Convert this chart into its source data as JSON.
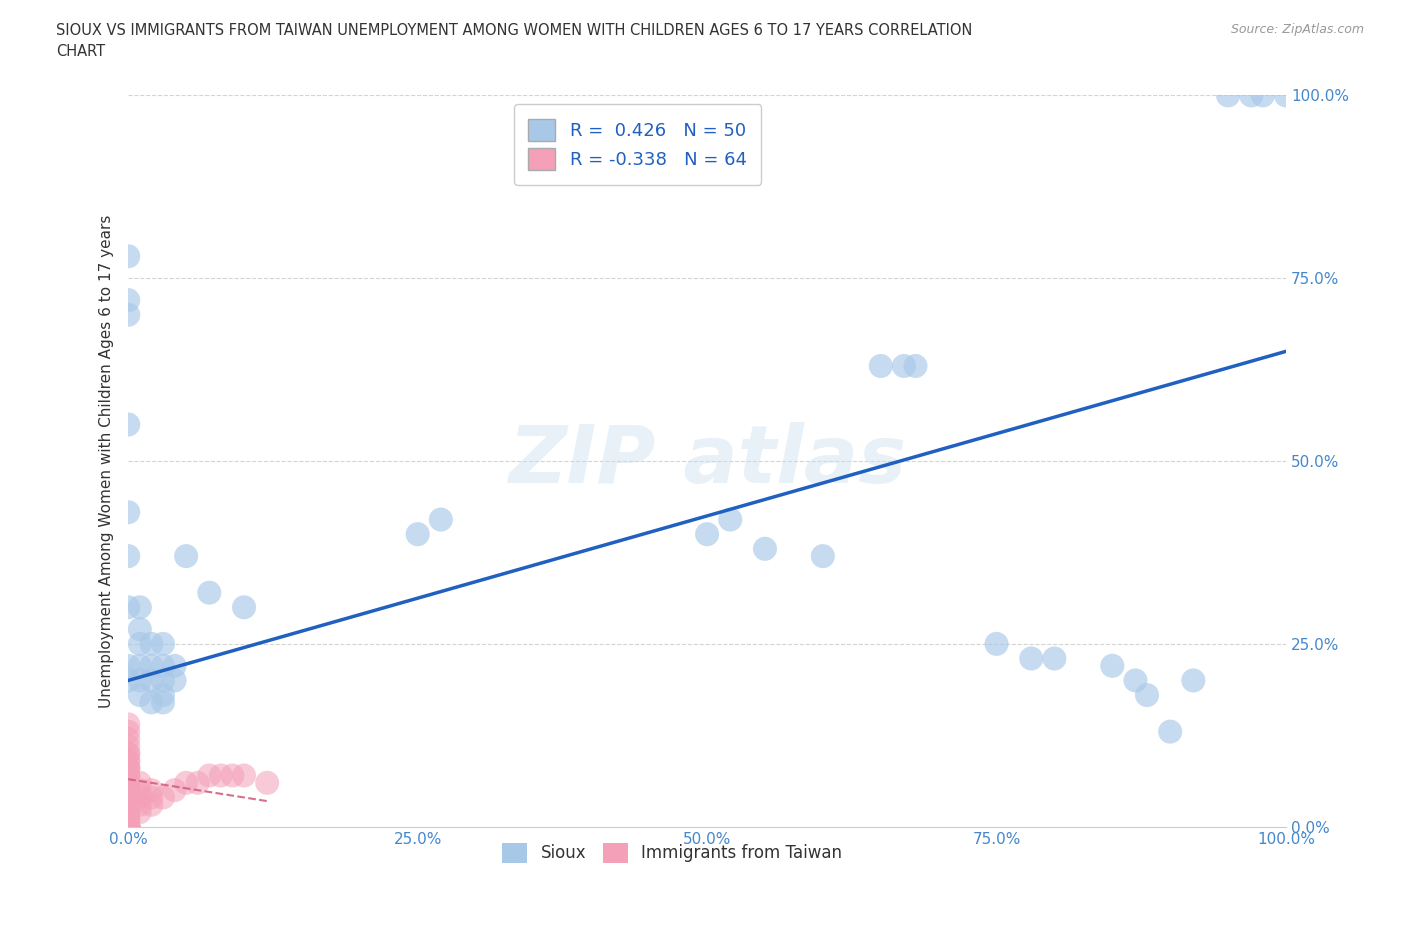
{
  "title": "SIOUX VS IMMIGRANTS FROM TAIWAN UNEMPLOYMENT AMONG WOMEN WITH CHILDREN AGES 6 TO 17 YEARS CORRELATION\nCHART",
  "source": "Source: ZipAtlas.com",
  "ylabel": "Unemployment Among Women with Children Ages 6 to 17 years",
  "legend_bottom": [
    "Sioux",
    "Immigrants from Taiwan"
  ],
  "sioux_R": 0.426,
  "sioux_N": 50,
  "taiwan_R": -0.338,
  "taiwan_N": 64,
  "sioux_color": "#a8c8e8",
  "taiwan_color": "#f4a0b8",
  "sioux_line_color": "#2060c0",
  "taiwan_line_color": "#d06080",
  "background_color": "#ffffff",
  "grid_color": "#c8c8c8",
  "sioux_x": [
    0.0,
    0.0,
    0.0,
    0.0,
    0.0,
    0.0,
    0.0,
    0.0,
    0.0,
    0.01,
    0.01,
    0.01,
    0.01,
    0.01,
    0.01,
    0.02,
    0.02,
    0.02,
    0.02,
    0.03,
    0.03,
    0.03,
    0.03,
    0.03,
    0.04,
    0.04,
    0.05,
    0.07,
    0.1,
    0.25,
    0.27,
    0.5,
    0.52,
    0.55,
    0.6,
    0.65,
    0.67,
    0.68,
    0.75,
    0.78,
    0.8,
    0.85,
    0.87,
    0.88,
    0.9,
    0.92,
    0.95,
    0.97,
    0.98,
    1.0
  ],
  "sioux_y": [
    0.78,
    0.72,
    0.7,
    0.55,
    0.43,
    0.37,
    0.3,
    0.22,
    0.2,
    0.3,
    0.27,
    0.25,
    0.22,
    0.2,
    0.18,
    0.25,
    0.22,
    0.2,
    0.17,
    0.25,
    0.22,
    0.2,
    0.18,
    0.17,
    0.22,
    0.2,
    0.37,
    0.32,
    0.3,
    0.4,
    0.42,
    0.4,
    0.42,
    0.38,
    0.37,
    0.63,
    0.63,
    0.63,
    0.25,
    0.23,
    0.23,
    0.22,
    0.2,
    0.18,
    0.13,
    0.2,
    1.0,
    1.0,
    1.0,
    1.0
  ],
  "taiwan_x": [
    0.0,
    0.0,
    0.0,
    0.0,
    0.0,
    0.0,
    0.0,
    0.0,
    0.0,
    0.0,
    0.0,
    0.0,
    0.0,
    0.0,
    0.0,
    0.0,
    0.0,
    0.0,
    0.0,
    0.0,
    0.0,
    0.0,
    0.0,
    0.0,
    0.0,
    0.0,
    0.0,
    0.0,
    0.0,
    0.0,
    0.0,
    0.0,
    0.0,
    0.0,
    0.0,
    0.0,
    0.0,
    0.0,
    0.0,
    0.0,
    0.0,
    0.0,
    0.0,
    0.0,
    0.0,
    0.0,
    0.0,
    0.01,
    0.01,
    0.01,
    0.01,
    0.01,
    0.02,
    0.02,
    0.02,
    0.03,
    0.04,
    0.05,
    0.06,
    0.07,
    0.08,
    0.09,
    0.1,
    0.12
  ],
  "taiwan_y": [
    0.0,
    0.0,
    0.0,
    0.0,
    0.0,
    0.0,
    0.0,
    0.0,
    0.0,
    0.0,
    0.0,
    0.0,
    0.0,
    0.0,
    0.0,
    0.0,
    0.01,
    0.01,
    0.01,
    0.02,
    0.02,
    0.02,
    0.03,
    0.03,
    0.04,
    0.04,
    0.05,
    0.05,
    0.06,
    0.06,
    0.07,
    0.07,
    0.08,
    0.08,
    0.09,
    0.1,
    0.11,
    0.12,
    0.13,
    0.14,
    0.03,
    0.05,
    0.06,
    0.07,
    0.08,
    0.09,
    0.1,
    0.02,
    0.03,
    0.04,
    0.05,
    0.06,
    0.03,
    0.04,
    0.05,
    0.04,
    0.05,
    0.06,
    0.06,
    0.07,
    0.07,
    0.07,
    0.07,
    0.06
  ],
  "sioux_line_x0": 0.0,
  "sioux_line_y0": 0.2,
  "sioux_line_x1": 1.0,
  "sioux_line_y1": 0.65,
  "taiwan_line_x0": 0.0,
  "taiwan_line_y0": 0.065,
  "taiwan_line_x1": 0.12,
  "taiwan_line_y1": 0.035,
  "xlim": [
    0.0,
    1.0
  ],
  "ylim": [
    0.0,
    1.0
  ],
  "xticks": [
    0.0,
    0.25,
    0.5,
    0.75,
    1.0
  ],
  "xticklabels": [
    "0.0%",
    "25.0%",
    "50.0%",
    "75.0%",
    "100.0%"
  ],
  "right_yticks": [
    0.0,
    0.25,
    0.5,
    0.75,
    1.0
  ],
  "right_yticklabels": [
    "0.0%",
    "25.0%",
    "50.0%",
    "75.0%",
    "100.0%"
  ]
}
